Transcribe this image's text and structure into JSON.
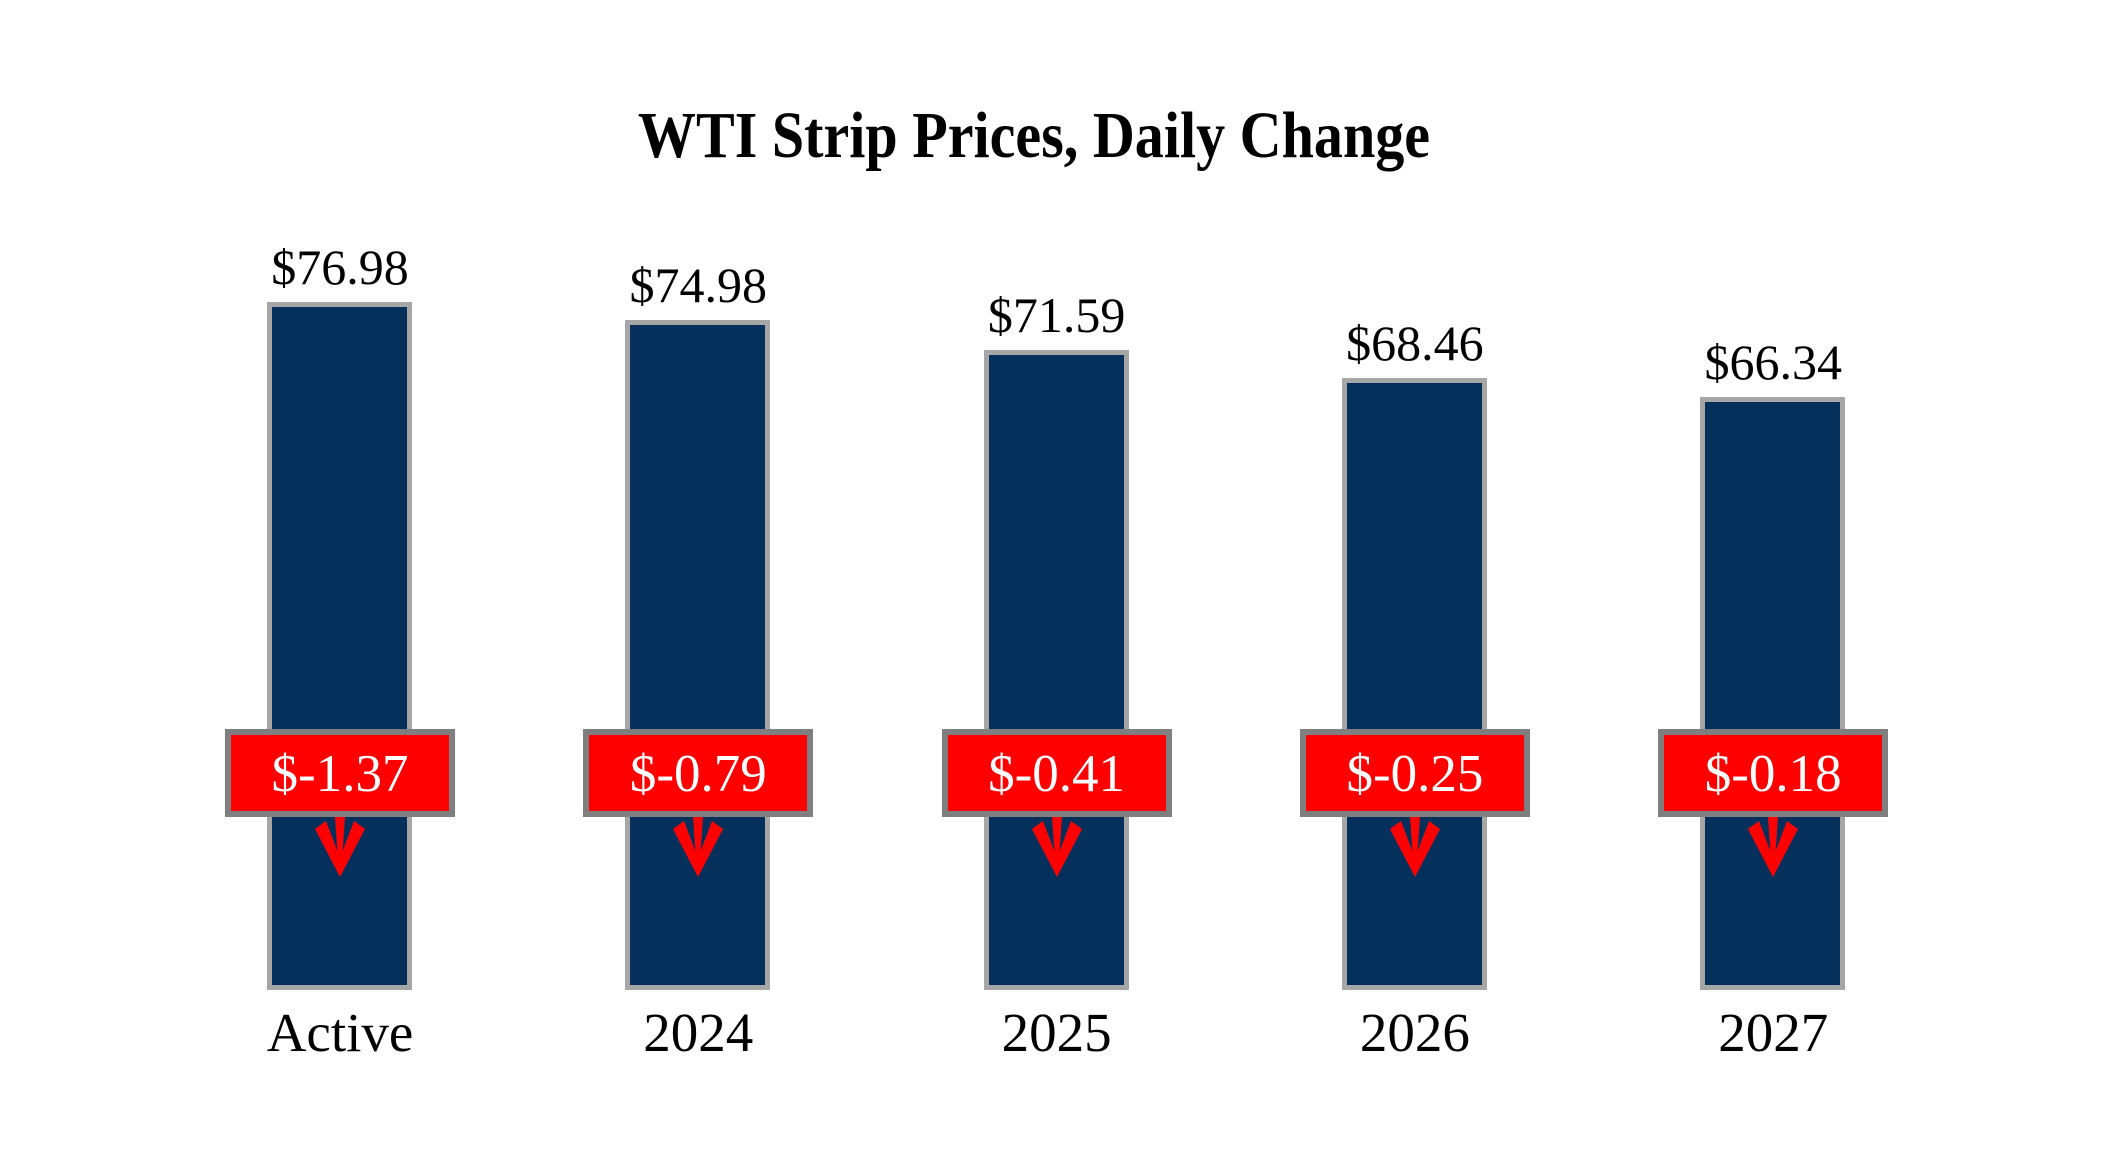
{
  "chart_data": {
    "type": "bar",
    "title": "WTI Strip Prices, Daily Change",
    "categories": [
      "Active",
      "2024",
      "2025",
      "2026",
      "2027"
    ],
    "series": [
      {
        "name": "WTI Strip Price",
        "values": [
          76.98,
          74.98,
          71.59,
          68.46,
          66.34
        ],
        "labels": [
          "$76.98",
          "$74.98",
          "$71.59",
          "$68.46",
          "$66.34"
        ]
      },
      {
        "name": "Daily Change",
        "values": [
          -1.37,
          -0.79,
          -0.41,
          -0.25,
          -0.18
        ],
        "labels": [
          "$-1.37",
          "$-0.79",
          "$-0.41",
          "$-0.25",
          "$-0.18"
        ]
      }
    ],
    "ylim": [
      0,
      77
    ],
    "grid": false,
    "legend": false,
    "axes_shown": false,
    "annotations": {
      "direction_icon": "down-arrow",
      "direction_meaning": "daily price decrease"
    },
    "colors": {
      "background": "#ffffff",
      "title-text": "#000000",
      "label-text": "#000000",
      "bar-fill": "#05305c",
      "bar-border": "#a6a6a6",
      "badge-fill": "#ff0000",
      "badge-border": "#7f7f7f",
      "badge-text": "#ffffff",
      "arrow": "#ff0000"
    }
  }
}
